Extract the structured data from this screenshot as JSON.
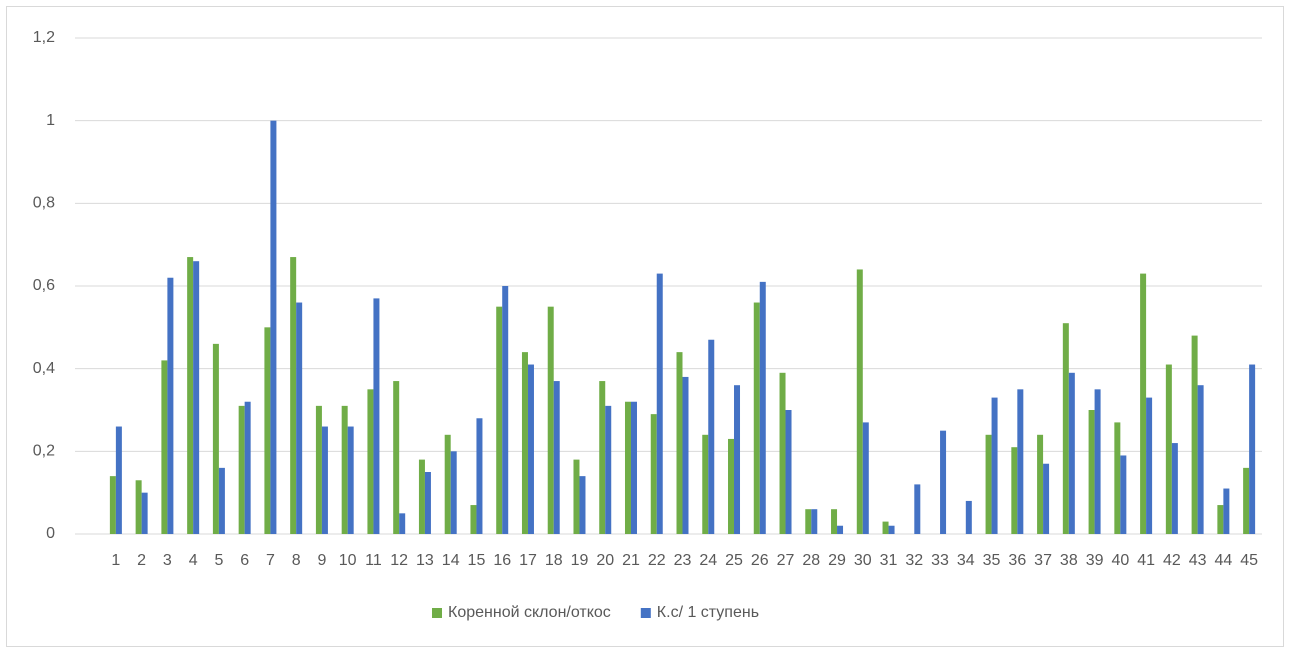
{
  "chart_data": {
    "type": "bar",
    "categories": [
      "1",
      "2",
      "3",
      "4",
      "5",
      "6",
      "7",
      "8",
      "9",
      "10",
      "11",
      "12",
      "13",
      "14",
      "15",
      "16",
      "17",
      "18",
      "19",
      "20",
      "21",
      "22",
      "23",
      "24",
      "25",
      "26",
      "27",
      "28",
      "29",
      "30",
      "31",
      "32",
      "33",
      "34",
      "35",
      "36",
      "37",
      "38",
      "39",
      "40",
      "41",
      "42",
      "43",
      "44",
      "45"
    ],
    "series": [
      {
        "name": "Коренной склон/откос",
        "color": "#70ad47",
        "values": [
          0.14,
          0.13,
          0.42,
          0.67,
          0.46,
          0.31,
          0.5,
          0.67,
          0.31,
          0.31,
          0.35,
          0.37,
          0.18,
          0.24,
          0.07,
          0.55,
          0.44,
          0.55,
          0.18,
          0.37,
          0.32,
          0.29,
          0.44,
          0.24,
          0.23,
          0.56,
          0.39,
          0.06,
          0.06,
          0.64,
          0.03,
          0,
          0,
          0,
          0.24,
          0.21,
          0.24,
          0.51,
          0.3,
          0.27,
          0.63,
          0.41,
          0.48,
          0.07,
          0.16
        ]
      },
      {
        "name": "К.с/ 1 ступень",
        "color": "#4472c4",
        "values": [
          0.26,
          0.1,
          0.62,
          0.66,
          0.16,
          0.32,
          1.0,
          0.56,
          0.26,
          0.26,
          0.57,
          0.05,
          0.15,
          0.2,
          0.28,
          0.6,
          0.41,
          0.37,
          0.14,
          0.31,
          0.32,
          0.63,
          0.38,
          0.47,
          0.36,
          0.61,
          0.3,
          0.06,
          0.02,
          0.27,
          0.02,
          0.12,
          0.25,
          0.08,
          0.33,
          0.35,
          0.17,
          0.39,
          0.35,
          0.19,
          0.33,
          0.22,
          0.36,
          0.11,
          0.41
        ]
      }
    ],
    "ylim": [
      0,
      1.2
    ],
    "yticks": [
      0,
      {
        "value": 0.2,
        "label": "0,2"
      },
      {
        "value": 0.4,
        "label": "0,4"
      },
      {
        "value": 0.6,
        "label": "0,6"
      },
      {
        "value": 0.8,
        "label": "0,8"
      },
      1,
      {
        "value": 1.2,
        "label": "1,2"
      }
    ],
    "grid": true,
    "legend": "bottom"
  }
}
